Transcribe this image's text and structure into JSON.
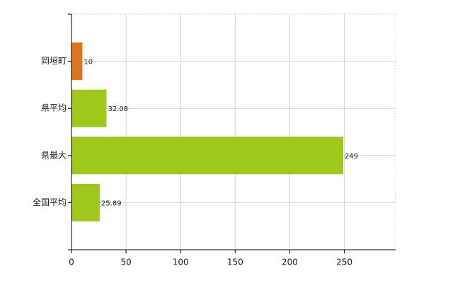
{
  "chart_data": {
    "type": "hbar",
    "categories": [
      "岡垣町",
      "県平均",
      "県最大",
      "全国平均"
    ],
    "values": [
      10,
      32.08,
      249,
      25.89
    ],
    "colors": [
      "#e0731f",
      "#9ec91c",
      "#9ec91c",
      "#9ec91c"
    ],
    "xlim": [
      0,
      297
    ],
    "xticks": [
      0,
      50,
      100,
      150,
      200,
      250
    ],
    "grid": true
  }
}
